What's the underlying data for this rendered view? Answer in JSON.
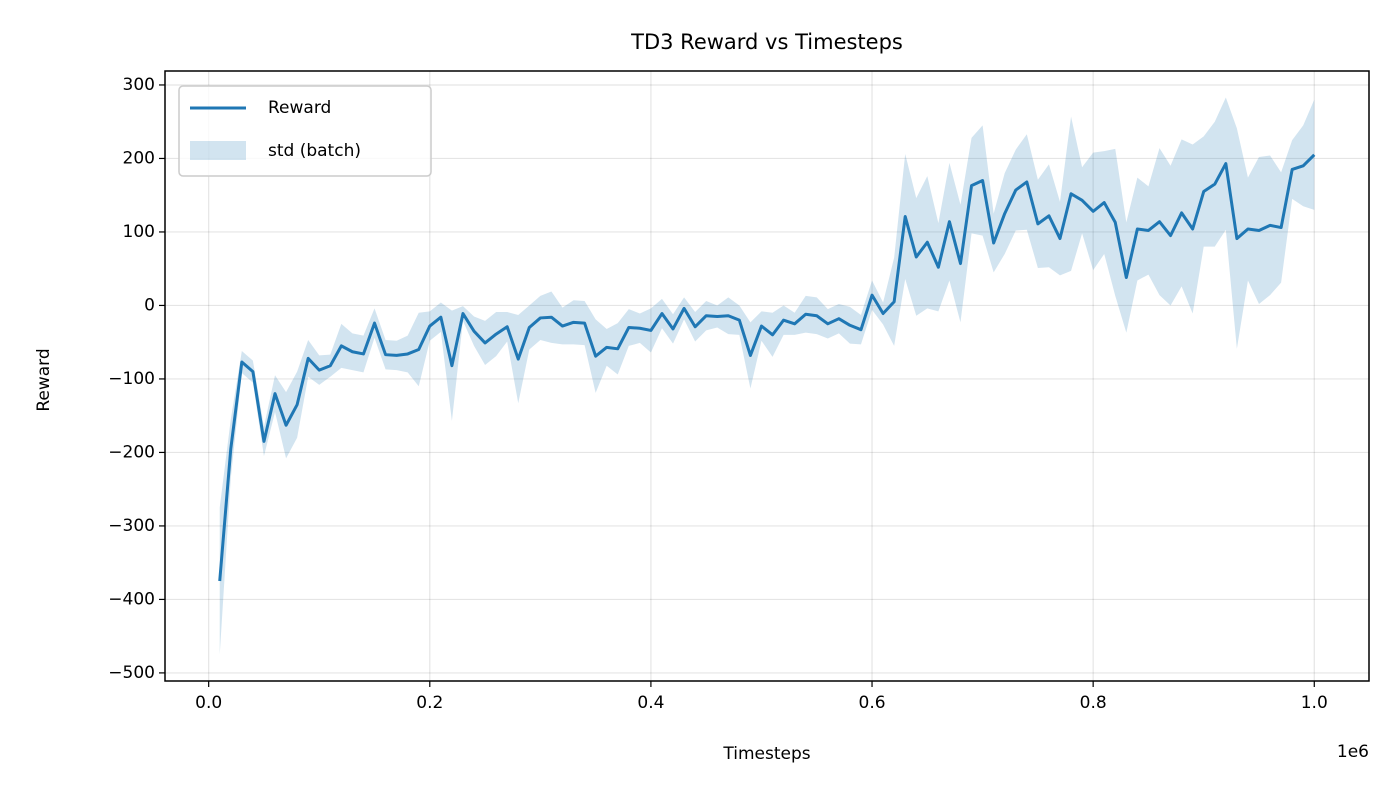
{
  "chart_data": {
    "type": "line",
    "title": "TD3 Reward vs Timesteps",
    "x_label": "Timesteps",
    "y_label": "Reward",
    "x_offset_label": "1e6",
    "x": [
      0.01,
      0.02,
      0.03,
      0.04,
      0.05,
      0.06,
      0.07,
      0.08,
      0.09,
      0.1,
      0.11,
      0.12,
      0.13,
      0.14,
      0.15,
      0.16,
      0.17,
      0.18,
      0.19,
      0.2,
      0.21,
      0.22,
      0.23,
      0.24,
      0.25,
      0.26,
      0.27,
      0.28,
      0.29,
      0.3,
      0.31,
      0.32,
      0.33,
      0.34,
      0.35,
      0.36,
      0.37,
      0.38,
      0.39,
      0.4,
      0.41,
      0.42,
      0.43,
      0.44,
      0.45,
      0.46,
      0.47,
      0.48,
      0.49,
      0.5,
      0.51,
      0.52,
      0.53,
      0.54,
      0.55,
      0.56,
      0.57,
      0.58,
      0.59,
      0.6,
      0.61,
      0.62,
      0.63,
      0.64,
      0.65,
      0.66,
      0.67,
      0.68,
      0.69,
      0.7,
      0.71,
      0.72,
      0.73,
      0.74,
      0.75,
      0.76,
      0.77,
      0.78,
      0.79,
      0.8,
      0.81,
      0.82,
      0.83,
      0.84,
      0.85,
      0.86,
      0.87,
      0.88,
      0.89,
      0.9,
      0.91,
      0.92,
      0.93,
      0.94,
      0.95,
      0.96,
      0.97,
      0.98,
      0.99,
      1.0
    ],
    "series": [
      {
        "name": "Reward",
        "color": "#1f77b4",
        "values": [
          -375,
          -195,
          -77,
          -90,
          -185,
          -120,
          -163,
          -135,
          -72,
          -88,
          -82,
          -55,
          -63,
          -66,
          -24,
          -67,
          -68,
          -66,
          -60,
          -28,
          -16,
          -82,
          -11,
          -35,
          -51,
          -39,
          -29,
          -73,
          -30,
          -17,
          -16,
          -28,
          -23,
          -24,
          -69,
          -57,
          -59,
          -30,
          -31,
          -34,
          -11,
          -32,
          -4,
          -29,
          -14,
          -15,
          -14,
          -20,
          -68,
          -28,
          -40,
          -20,
          -25,
          -12,
          -14,
          -25,
          -18,
          -27,
          -33,
          14,
          -11,
          5,
          121,
          66,
          86,
          52,
          114,
          57,
          163,
          170,
          85,
          125,
          157,
          168,
          111,
          122,
          91,
          152,
          143,
          128,
          140,
          113,
          38,
          104,
          102,
          114,
          95,
          126,
          104,
          155,
          165,
          193,
          91,
          104,
          102,
          109,
          106,
          185,
          190,
          205
        ]
      }
    ],
    "band": {
      "name": "std (batch)",
      "color": "#1f77b4",
      "alpha": 0.2,
      "values": [
        100,
        40,
        15,
        15,
        20,
        25,
        45,
        45,
        25,
        20,
        15,
        30,
        25,
        25,
        20,
        20,
        20,
        25,
        50,
        20,
        20,
        75,
        10,
        20,
        30,
        30,
        20,
        60,
        30,
        30,
        35,
        25,
        30,
        30,
        50,
        25,
        35,
        25,
        20,
        30,
        20,
        20,
        15,
        20,
        20,
        15,
        25,
        20,
        45,
        20,
        30,
        20,
        15,
        25,
        25,
        20,
        20,
        25,
        20,
        20,
        15,
        60,
        85,
        80,
        90,
        60,
        80,
        80,
        65,
        75,
        40,
        55,
        55,
        65,
        60,
        70,
        50,
        105,
        45,
        80,
        70,
        100,
        75,
        70,
        60,
        100,
        95,
        100,
        115,
        75,
        85,
        90,
        150,
        70,
        100,
        95,
        75,
        40,
        55,
        75
      ]
    },
    "xlim": [
      -0.0395,
      1.0495
    ],
    "ylim": [
      -511,
      319
    ],
    "xticks": [
      {
        "value": 0,
        "label": "0.0"
      },
      {
        "value": 0.2,
        "label": "0.2"
      },
      {
        "value": 0.4,
        "label": "0.4"
      },
      {
        "value": 0.6,
        "label": "0.6"
      },
      {
        "value": 0.8,
        "label": "0.8"
      },
      {
        "value": 1.0,
        "label": "1.0"
      }
    ],
    "yticks": [
      {
        "value": -500,
        "label": "−500"
      },
      {
        "value": -400,
        "label": "−400"
      },
      {
        "value": -300,
        "label": "−300"
      },
      {
        "value": -200,
        "label": "−200"
      },
      {
        "value": -100,
        "label": "−100"
      },
      0,
      100,
      200,
      300
    ],
    "grid": true,
    "legend": "upper left"
  }
}
